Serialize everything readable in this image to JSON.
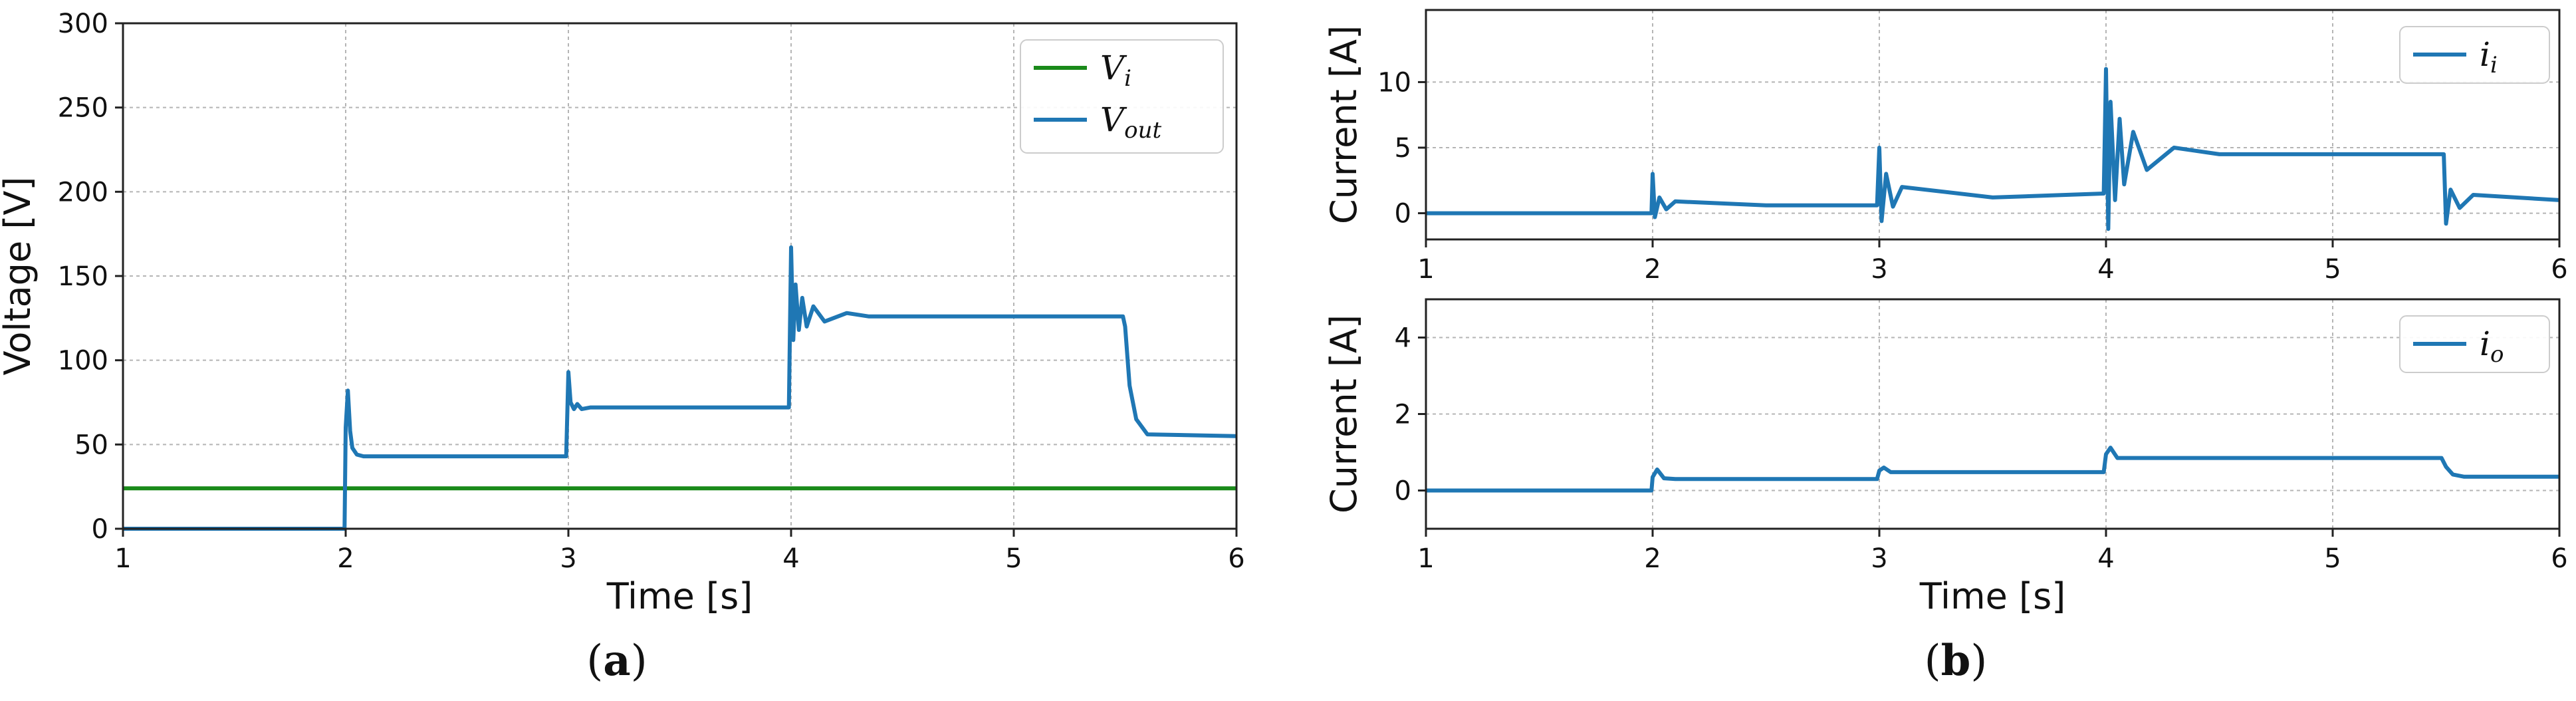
{
  "figure": {
    "panel_a_caption": {
      "open": "(",
      "letter": "a",
      "close": ")"
    },
    "panel_b_caption": {
      "open": "(",
      "letter": "b",
      "close": ")"
    }
  },
  "colors": {
    "blue": "#1f77b4",
    "green": "#1a8a1a",
    "grid": "#b5b5b5",
    "axis": "#222222"
  },
  "chart_data": [
    {
      "id": "a",
      "type": "line",
      "xlabel": "Time [s]",
      "ylabel": "Voltage [V]",
      "xlim": [
        1,
        6
      ],
      "ylim": [
        0,
        300
      ],
      "xticks": [
        1,
        2,
        3,
        4,
        5,
        6
      ],
      "yticks": [
        0,
        50,
        100,
        150,
        200,
        250,
        300
      ],
      "grid": true,
      "legend_position": "top-right",
      "series": [
        {
          "name": "V_i",
          "legend_main": "V",
          "legend_sub": "i",
          "color": "#1a8a1a",
          "x": [
            1,
            6
          ],
          "y": [
            24,
            24
          ]
        },
        {
          "name": "V_out",
          "legend_main": "V",
          "legend_sub": "out",
          "color": "#1f77b4",
          "x": [
            1,
            1.995,
            2.0,
            2.01,
            2.02,
            2.03,
            2.05,
            2.08,
            2.12,
            2.99,
            3.0,
            3.01,
            3.025,
            3.04,
            3.06,
            3.1,
            3.15,
            3.99,
            4.0,
            4.01,
            4.02,
            4.035,
            4.05,
            4.07,
            4.1,
            4.15,
            4.25,
            4.35,
            4.5,
            5.49,
            5.5,
            5.52,
            5.55,
            5.6,
            6
          ],
          "y": [
            0,
            0,
            60,
            82,
            58,
            48,
            44,
            43,
            43,
            43,
            93,
            75,
            71,
            74,
            71,
            72,
            72,
            72,
            167,
            112,
            145,
            118,
            137,
            120,
            132,
            123,
            128,
            126,
            126,
            126,
            120,
            85,
            65,
            56,
            55
          ]
        }
      ]
    },
    {
      "id": "b1",
      "type": "line",
      "xlabel": "",
      "ylabel": "Current [A]",
      "xlim": [
        1,
        6
      ],
      "ylim": [
        -2,
        15.5
      ],
      "xticks": [
        1,
        2,
        3,
        4,
        5,
        6
      ],
      "yticks": [
        0,
        5,
        10
      ],
      "grid": true,
      "legend_position": "top-right",
      "series": [
        {
          "name": "i_i",
          "legend_main": "i",
          "legend_sub": "i",
          "color": "#1f77b4",
          "x": [
            1,
            1.995,
            2.0,
            2.01,
            2.03,
            2.06,
            2.1,
            2.5,
            2.99,
            3.0,
            3.01,
            3.03,
            3.06,
            3.1,
            3.5,
            3.99,
            4.0,
            4.01,
            4.02,
            4.04,
            4.06,
            4.08,
            4.12,
            4.18,
            4.3,
            4.5,
            5.49,
            5.5,
            5.52,
            5.56,
            5.62,
            6
          ],
          "y": [
            0,
            0,
            3,
            -0.3,
            1.2,
            0.3,
            0.9,
            0.6,
            0.6,
            5,
            -0.6,
            3,
            0.5,
            2.0,
            1.2,
            1.5,
            11,
            -1.2,
            8.5,
            1.0,
            7.2,
            2.2,
            6.2,
            3.3,
            5.0,
            4.5,
            4.5,
            -0.8,
            1.8,
            0.4,
            1.4,
            1.0
          ]
        }
      ]
    },
    {
      "id": "b2",
      "type": "line",
      "xlabel": "Time [s]",
      "ylabel": "Current [A]",
      "xlim": [
        1,
        6
      ],
      "ylim": [
        -1,
        5
      ],
      "xticks": [
        1,
        2,
        3,
        4,
        5,
        6
      ],
      "yticks": [
        0,
        2,
        4
      ],
      "grid": true,
      "legend_position": "top-right",
      "series": [
        {
          "name": "i_o",
          "legend_main": "i",
          "legend_sub": "o",
          "color": "#1f77b4",
          "x": [
            1,
            1.995,
            2.0,
            2.02,
            2.05,
            2.1,
            2.99,
            3.0,
            3.02,
            3.05,
            3.99,
            4.0,
            4.02,
            4.05,
            4.1,
            5.48,
            5.5,
            5.53,
            5.58,
            6
          ],
          "y": [
            0,
            0,
            0.35,
            0.55,
            0.32,
            0.3,
            0.3,
            0.52,
            0.6,
            0.48,
            0.48,
            0.95,
            1.12,
            0.85,
            0.85,
            0.85,
            0.62,
            0.42,
            0.36,
            0.36
          ]
        }
      ]
    }
  ]
}
